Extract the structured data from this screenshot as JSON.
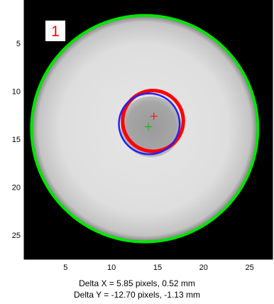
{
  "chart_data": {
    "type": "image",
    "title": "",
    "xlabel": "",
    "ylabel": "",
    "xlim": [
      0.5,
      27.5
    ],
    "ylim": [
      0.5,
      27.5
    ],
    "y_reversed": true,
    "xticks": [
      5,
      10,
      15,
      20,
      25
    ],
    "yticks": [
      5,
      10,
      15,
      20,
      25
    ],
    "panel_label": "1",
    "image": {
      "description": "grayscale detector image with bright circular disk on dark background and a darker central spot",
      "disk": {
        "center": [
          13.6,
          13.9
        ],
        "radius": 12.2
      },
      "inner_spot": {
        "center": [
          14.3,
          13.7
        ],
        "radius": 3.3
      }
    },
    "overlays": [
      {
        "name": "outer-circle",
        "color": "#00e600",
        "center": [
          13.6,
          13.9
        ],
        "radius": 12.3
      },
      {
        "name": "inner-circle-red",
        "color": "#ff0000",
        "center": [
          14.5,
          13.1
        ],
        "radius": 3.3
      },
      {
        "name": "inner-circle-blue",
        "color": "#2020ff",
        "center": [
          14.1,
          13.4
        ],
        "radius": 3.3
      },
      {
        "name": "center-marker-red",
        "color": "#ff0000",
        "x": 14.6,
        "y": 12.6
      },
      {
        "name": "center-marker-green",
        "color": "#00c000",
        "x": 14.0,
        "y": 13.7
      }
    ],
    "annotations": [
      "Delta X = 5.85 pixels, 0.52 mm",
      "Delta Y = -12.70 pixels, -1.13 mm"
    ]
  },
  "colors": {
    "outer_circle": "#00e600",
    "inner_red": "#ff0000",
    "inner_blue": "#2020ff",
    "panel_label": "#ff0000",
    "background": "#000000"
  }
}
